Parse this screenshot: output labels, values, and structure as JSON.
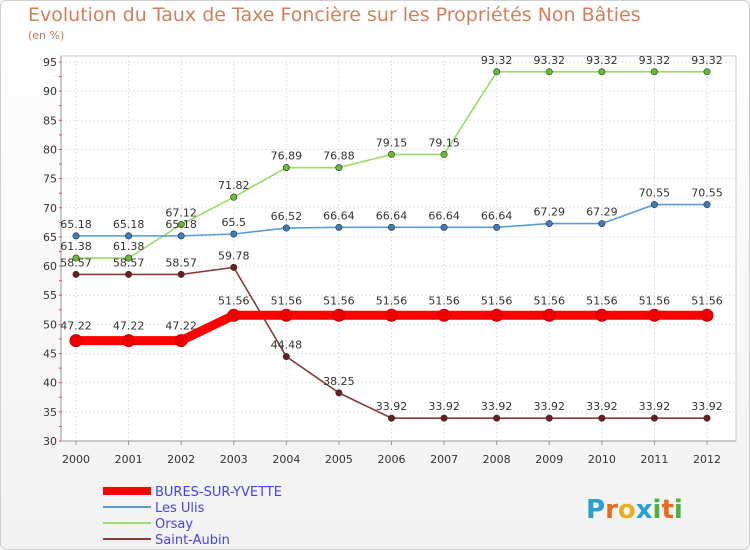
{
  "title": "Evolution du Taux de Taxe Foncière sur les Propriétés Non Bâties",
  "unit": "(en %)",
  "logo": {
    "name": "Proxiti",
    "letters": [
      "P",
      "r",
      "o",
      "x",
      "i",
      "t",
      "i"
    ],
    "colors": [
      "#2aa0d0",
      "#e86a20",
      "#e8b020",
      "#2aa0d0",
      "#50b040",
      "#e86a20",
      "#50b040"
    ]
  },
  "chart_data": {
    "type": "line",
    "title": "Evolution du Taux de Taxe Foncière sur les Propriétés Non Bâties",
    "ylabel": "(en %)",
    "xlabel": "",
    "x": [
      "2000",
      "2001",
      "2002",
      "2003",
      "2004",
      "2005",
      "2006",
      "2007",
      "2008",
      "2009",
      "2010",
      "2011",
      "2012"
    ],
    "ylim": [
      30,
      95
    ],
    "yticks": [
      30,
      35,
      40,
      45,
      50,
      55,
      60,
      65,
      70,
      75,
      80,
      85,
      90,
      95
    ],
    "grid": true,
    "legend_position": "bottom-left",
    "series": [
      {
        "name": "BURES-SUR-YVETTE",
        "color": "#ff0000",
        "marker": "#ee0000",
        "values": [
          47.22,
          47.22,
          47.22,
          51.56,
          51.56,
          51.56,
          51.56,
          51.56,
          51.56,
          51.56,
          51.56,
          51.56,
          51.56
        ],
        "labels": [
          "47.22",
          "47.22",
          "47.22",
          "51.56",
          "51.56",
          "51.56",
          "51.56",
          "51.56",
          "51.56",
          "51.56",
          "51.56",
          "51.56",
          "51.56"
        ]
      },
      {
        "name": "Les Ulis",
        "color": "#5b9bd5",
        "marker": "#3a7ec0",
        "values": [
          65.18,
          65.18,
          65.18,
          65.5,
          66.52,
          66.64,
          66.64,
          66.64,
          66.64,
          67.29,
          67.29,
          70.55,
          70.55
        ],
        "labels": [
          "65.18",
          "65.18",
          "65.18",
          "65.5",
          "66.52",
          "66.64",
          "66.64",
          "66.64",
          "66.64",
          "67.29",
          "67.29",
          "70.55",
          "70.55"
        ]
      },
      {
        "name": "Orsay",
        "color": "#99dd66",
        "marker": "#66bb33",
        "values": [
          61.38,
          61.38,
          67.12,
          71.82,
          76.89,
          76.88,
          79.15,
          79.15,
          93.32,
          93.32,
          93.32,
          93.32,
          93.32
        ],
        "labels": [
          "61.38",
          "61.38",
          "67.12",
          "71.82",
          "76.89",
          "76.88",
          "79.15",
          "79.15",
          "93.32",
          "93.32",
          "93.32",
          "93.32",
          "93.32"
        ]
      },
      {
        "name": "Saint-Aubin",
        "color": "#8a3a3a",
        "marker": "#6a1f1f",
        "values": [
          58.57,
          58.57,
          58.57,
          59.78,
          44.48,
          38.25,
          33.92,
          33.92,
          33.92,
          33.92,
          33.92,
          33.92,
          33.92
        ],
        "labels": [
          "58.57",
          "58.57",
          "58.57",
          "59.78",
          "44.48",
          "38.25",
          "33.92",
          "33.92",
          "33.92",
          "33.92",
          "33.92",
          "33.92",
          "33.92"
        ]
      }
    ]
  }
}
